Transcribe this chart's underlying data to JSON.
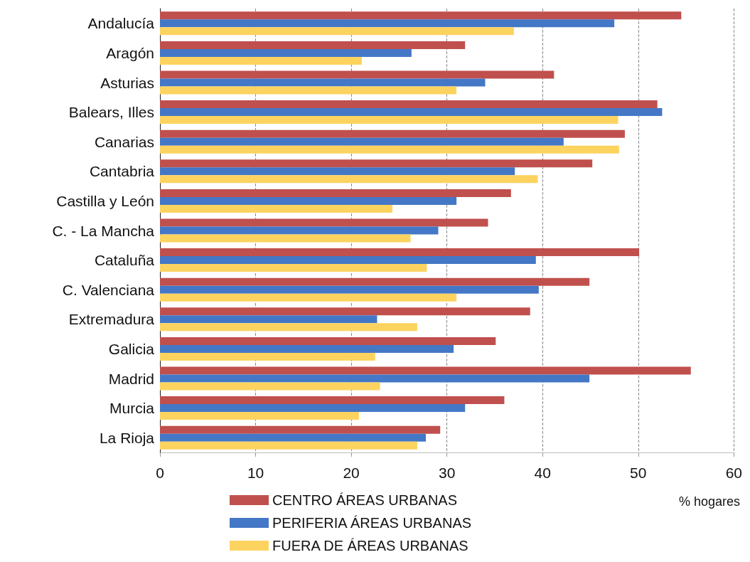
{
  "chart_data": {
    "type": "bar",
    "orientation": "horizontal",
    "xlabel": "% hogares",
    "categories": [
      "Andalucía",
      "Aragón",
      "Asturias",
      "Balears, Illes",
      "Canarias",
      "Cantabria",
      "Castilla y León",
      "C. - La Mancha",
      "Cataluña",
      "C. Valenciana",
      "Extremadura",
      "Galicia",
      "Madrid",
      "Murcia",
      "La Rioja"
    ],
    "series": [
      {
        "name": "CENTRO ÁREAS URBANAS",
        "color": "#c0504d",
        "values": [
          54.5,
          31.9,
          41.2,
          52.0,
          48.6,
          45.2,
          36.7,
          34.3,
          50.1,
          44.9,
          38.7,
          35.1,
          55.5,
          36.0,
          29.3
        ]
      },
      {
        "name": "PERIFERIA ÁREAS URBANAS",
        "color": "#4477c6",
        "values": [
          47.5,
          26.3,
          34.0,
          52.5,
          42.2,
          37.1,
          31.0,
          29.1,
          39.3,
          39.6,
          22.7,
          30.7,
          44.9,
          31.9,
          27.8
        ]
      },
      {
        "name": "FUERA DE ÁREAS URBANAS",
        "color": "#fdd35f",
        "values": [
          37.0,
          21.1,
          31.0,
          47.9,
          48.0,
          39.5,
          24.3,
          26.2,
          27.9,
          31.0,
          26.9,
          22.5,
          23.0,
          20.8,
          26.9
        ]
      }
    ],
    "xlim": [
      0,
      60
    ],
    "xticks": [
      0,
      10,
      20,
      30,
      40,
      50,
      60
    ],
    "grid": "x",
    "legend": "bottom"
  }
}
